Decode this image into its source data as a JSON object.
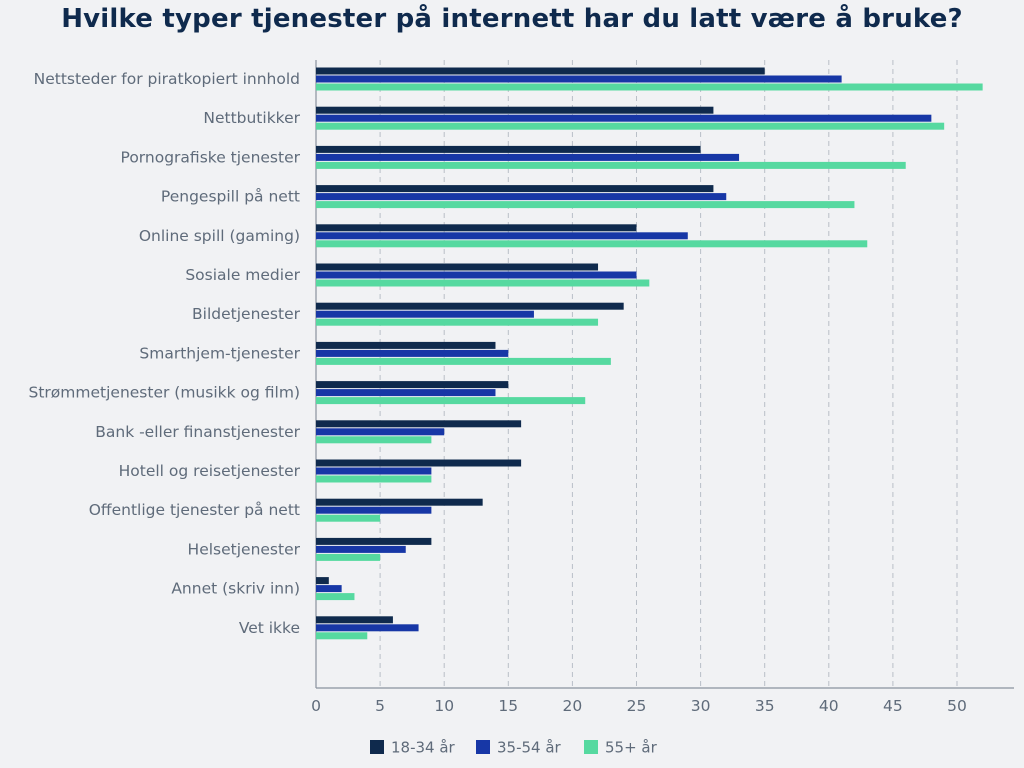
{
  "chart_data": {
    "type": "bar",
    "orientation": "horizontal",
    "title": "Hvilke typer tjenester på internett har du latt være å bruke?",
    "xlabel": "",
    "ylabel": "",
    "xlim": [
      0,
      54
    ],
    "x_ticks": [
      0,
      5,
      10,
      15,
      20,
      25,
      30,
      35,
      40,
      45,
      50
    ],
    "grid": "vertical-dashed",
    "legend_position": "bottom-center",
    "categories": [
      "Nettsteder for piratkopiert innhold",
      "Nettbutikker",
      "Pornografiske tjenester",
      "Pengespill på nett",
      "Online spill (gaming)",
      "Sosiale medier",
      "Bildetjenester",
      "Smarthjem-tjenester",
      "Strømmetjenester (musikk og film)",
      "Bank -eller finanstjenester",
      "Hotell og reisetjenester",
      "Offentlige tjenester på nett",
      "Helsetjenester",
      "Annet (skriv inn)",
      "Vet ikke"
    ],
    "series": [
      {
        "name": "18-34 år",
        "color": "#0f2a4d",
        "values": [
          35,
          31,
          30,
          31,
          25,
          22,
          24,
          14,
          15,
          16,
          16,
          13,
          9,
          1,
          6
        ]
      },
      {
        "name": "35-54 år",
        "color": "#1737a6",
        "values": [
          41,
          48,
          33,
          32,
          29,
          25,
          17,
          15,
          14,
          10,
          9,
          9,
          7,
          2,
          8
        ]
      },
      {
        "name": "55+ år",
        "color": "#56d9a0",
        "values": [
          52,
          49,
          46,
          42,
          43,
          26,
          22,
          23,
          21,
          9,
          9,
          5,
          5,
          3,
          4
        ]
      }
    ]
  }
}
